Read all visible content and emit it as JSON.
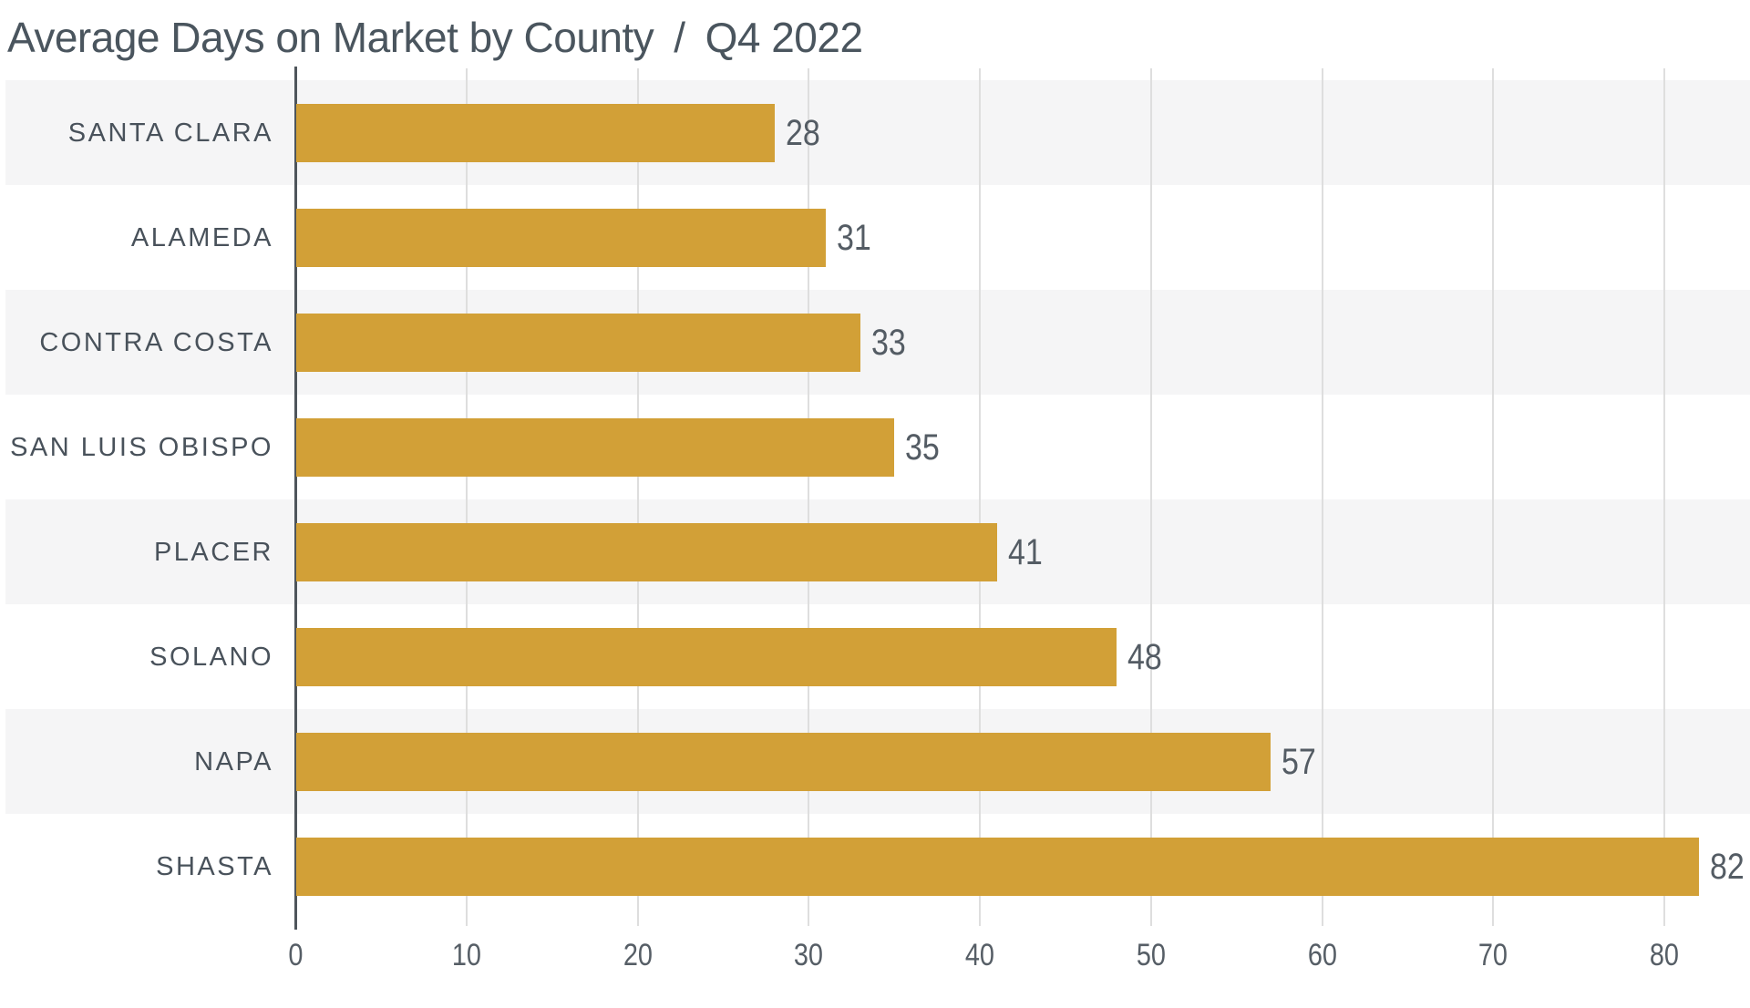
{
  "title": {
    "text": "Average Days on Market by County",
    "separator": "/",
    "period": "Q4 2022"
  },
  "chart_data": {
    "type": "bar",
    "orientation": "horizontal",
    "title": "Average Days on Market by County / Q4 2022",
    "categories": [
      "SANTA CLARA",
      "ALAMEDA",
      "CONTRA COSTA",
      "SAN LUIS OBISPO",
      "PLACER",
      "SOLANO",
      "NAPA",
      "SHASTA"
    ],
    "values": [
      28,
      31,
      33,
      35,
      41,
      48,
      57,
      82
    ],
    "value_labels": [
      "28",
      "31",
      "33",
      "35",
      "41",
      "48",
      "57",
      "82"
    ],
    "xlabel": "",
    "ylabel": "",
    "xlim": [
      0,
      85
    ],
    "x_ticks": [
      0,
      10,
      20,
      30,
      40,
      50,
      60,
      70,
      80
    ],
    "grid": true,
    "legend": false,
    "row_bands": "alternating, bands behind rows 1,3,5,7",
    "colors": {
      "bar": "#D2A037",
      "row_band": "#F5F5F6",
      "gridline": "#DEDEDE",
      "axis_line": "#4E555B",
      "title_text": "#4A555E",
      "category_text": "#49525B",
      "value_text": "#545C64",
      "tick_text": "#565E66",
      "background": "#FFFFFF"
    }
  }
}
